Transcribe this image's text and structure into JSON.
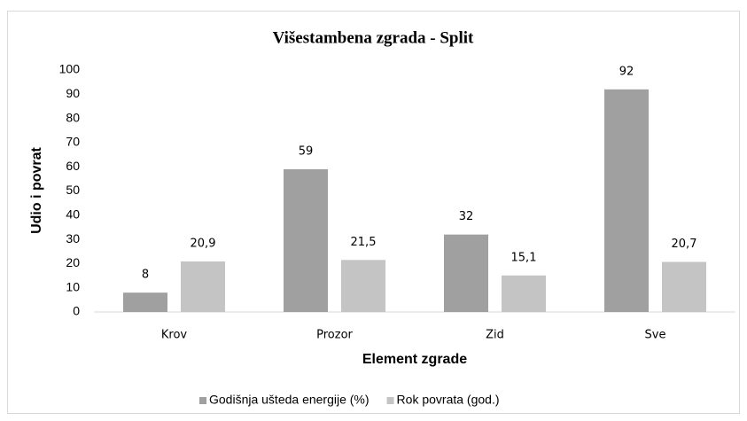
{
  "chart_data": {
    "type": "bar",
    "title": "Višestambena zgrada - Split",
    "xlabel": "Element zgrade",
    "ylabel": "Udio i povrat",
    "categories": [
      "Krov",
      "Prozor",
      "Zid",
      "Sve"
    ],
    "series": [
      {
        "name": "Godišnja ušteda energije (%)",
        "color": "#a0a0a0",
        "values": [
          8,
          59,
          32,
          92
        ]
      },
      {
        "name": "Rok povrata (god.)",
        "color": "#c4c4c4",
        "values": [
          20.9,
          21.5,
          15.1,
          20.7
        ],
        "value_labels": [
          "20,9",
          "21,5",
          "15,1",
          "20,7"
        ]
      }
    ],
    "ylim": [
      0,
      100
    ],
    "yticks": [
      0,
      10,
      20,
      30,
      40,
      50,
      60,
      70,
      80,
      90,
      100
    ],
    "grid": false,
    "legend": "bottom"
  }
}
